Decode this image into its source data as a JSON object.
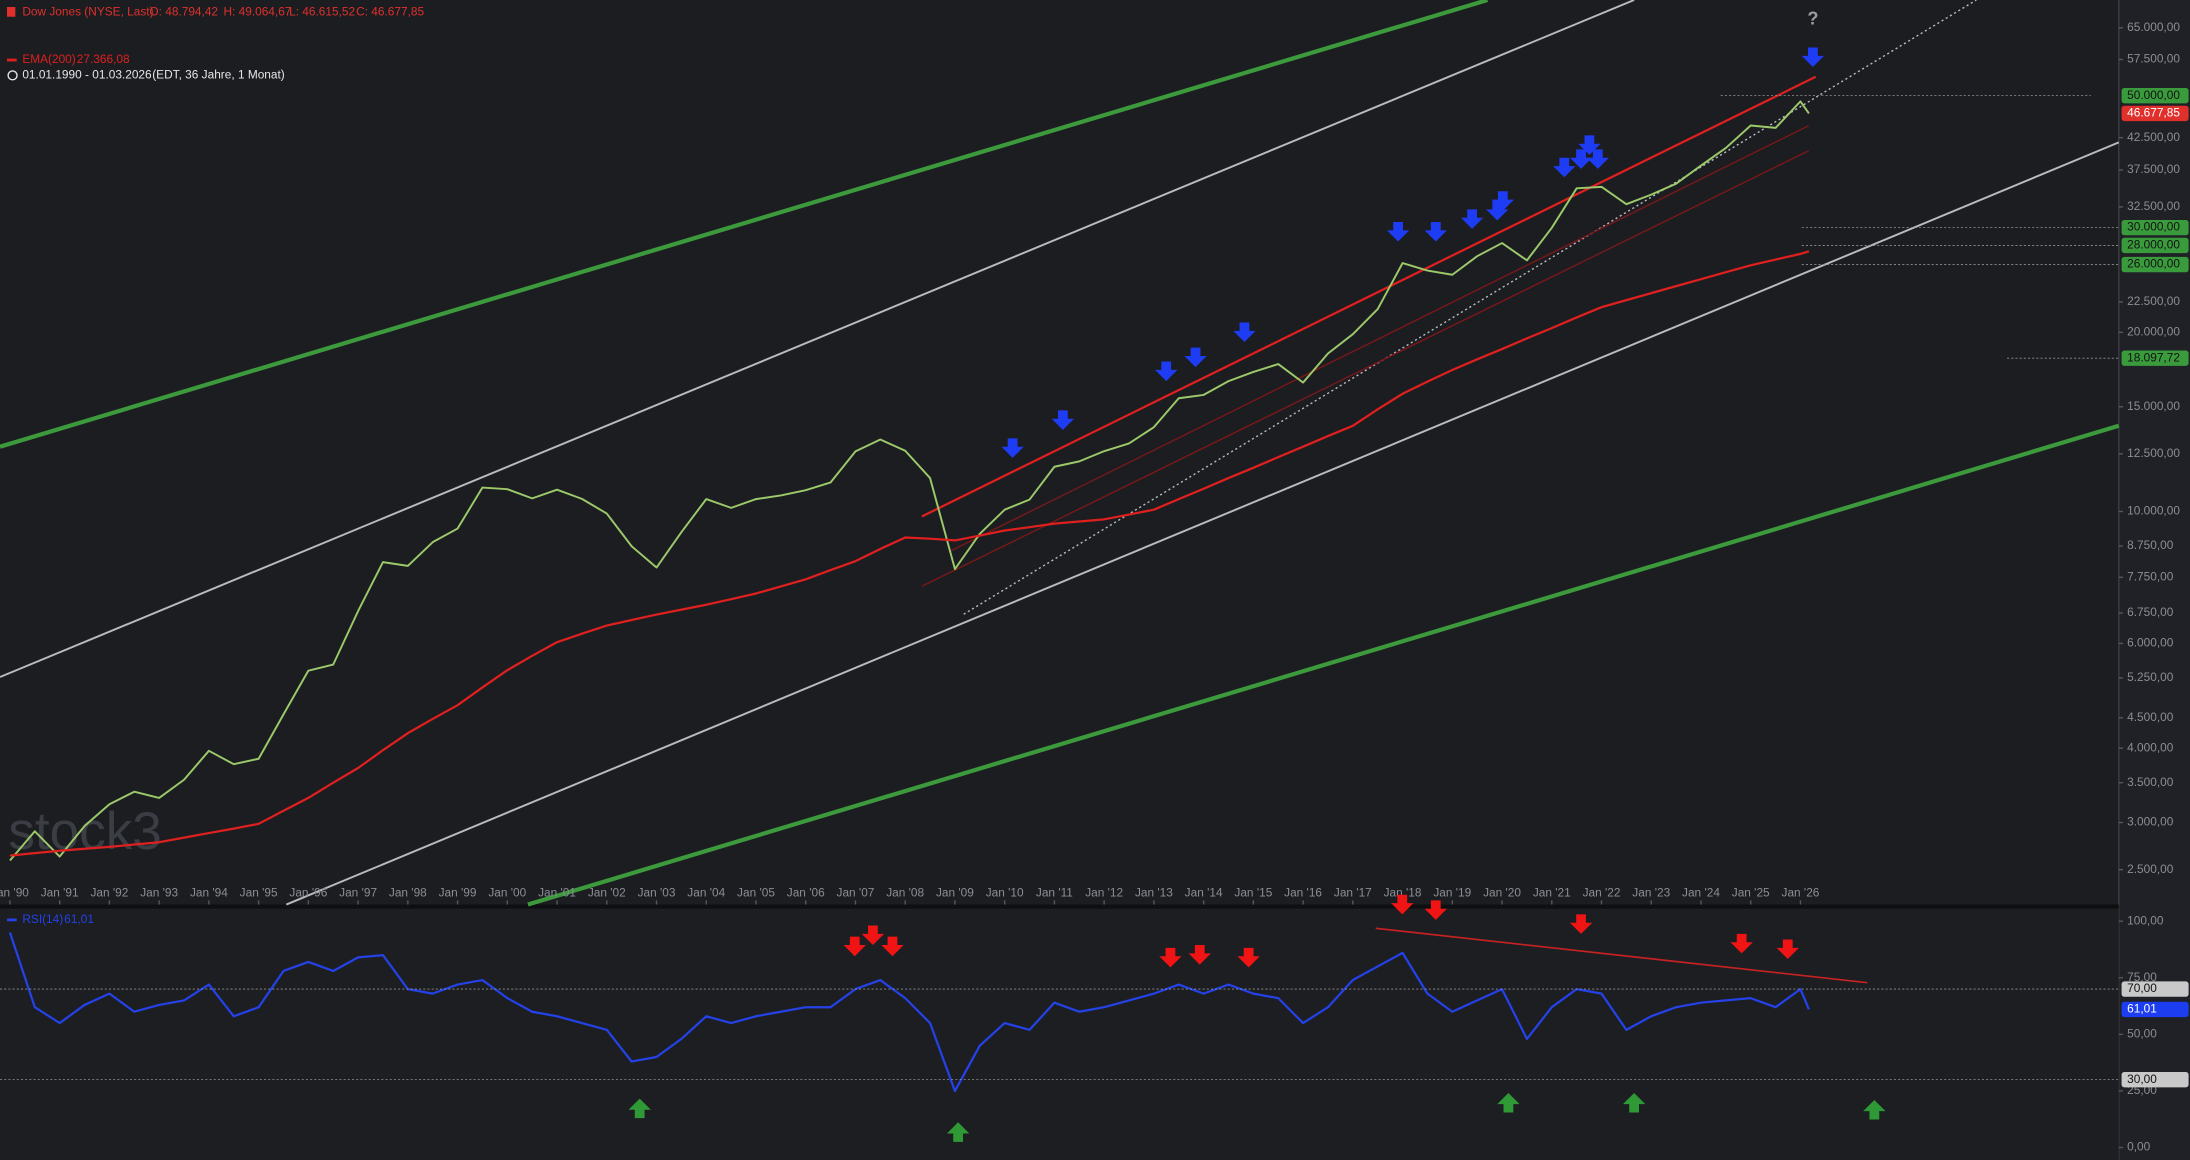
{
  "chart_data": [
    {
      "type": "line",
      "yscale": "log",
      "title": "Dow Jones (NYSE, Last)",
      "ohlc": [
        "O: 48.794,42",
        "H: 49.064,67",
        "L: 46.615,52",
        "C: 46.677,85"
      ],
      "date_range": "01.01.1990 - 01.03.2026",
      "date_range_note": "(EDT, 36 Jahre, 1 Monat)",
      "annotation": "?",
      "watermark": "stock3",
      "xlim": [
        1989.8,
        2032.4
      ],
      "xticks": [
        {
          "value": 1990,
          "label": "Jan '90"
        },
        {
          "value": 1991,
          "label": "Jan '91"
        },
        {
          "value": 1992,
          "label": "Jan '92"
        },
        {
          "value": 1993,
          "label": "Jan '93"
        },
        {
          "value": 1994,
          "label": "Jan '94"
        },
        {
          "value": 1995,
          "label": "Jan '95"
        },
        {
          "value": 1996,
          "label": "Jan '96"
        },
        {
          "value": 1997,
          "label": "Jan '97"
        },
        {
          "value": 1998,
          "label": "Jan '98"
        },
        {
          "value": 1999,
          "label": "Jan '99"
        },
        {
          "value": 2000,
          "label": "Jan '00"
        },
        {
          "value": 2001,
          "label": "Jan '01"
        },
        {
          "value": 2002,
          "label": "Jan '02"
        },
        {
          "value": 2003,
          "label": "Jan '03"
        },
        {
          "value": 2004,
          "label": "Jan '04"
        },
        {
          "value": 2005,
          "label": "Jan '05"
        },
        {
          "value": 2006,
          "label": "Jan '06"
        },
        {
          "value": 2007,
          "label": "Jan '07"
        },
        {
          "value": 2008,
          "label": "Jan '08"
        },
        {
          "value": 2009,
          "label": "Jan '09"
        },
        {
          "value": 2010,
          "label": "Jan '10"
        },
        {
          "value": 2011,
          "label": "Jan '11"
        },
        {
          "value": 2012,
          "label": "Jan '12"
        },
        {
          "value": 2013,
          "label": "Jan '13"
        },
        {
          "value": 2014,
          "label": "Jan '14"
        },
        {
          "value": 2015,
          "label": "Jan '15"
        },
        {
          "value": 2016,
          "label": "Jan '16"
        },
        {
          "value": 2017,
          "label": "Jan '17"
        },
        {
          "value": 2018,
          "label": "Jan '18"
        },
        {
          "value": 2019,
          "label": "Jan '19"
        },
        {
          "value": 2020,
          "label": "Jan '20"
        },
        {
          "value": 2021,
          "label": "Jan '21"
        },
        {
          "value": 2022,
          "label": "Jan '22"
        },
        {
          "value": 2023,
          "label": "Jan '23"
        },
        {
          "value": 2024,
          "label": "Jan '24"
        },
        {
          "value": 2025,
          "label": "Jan '25"
        },
        {
          "value": 2026,
          "label": "Jan '26"
        }
      ],
      "ylim": [
        2184,
        72400
      ],
      "yticks": [
        {
          "value": 65000,
          "label": "65.000,00"
        },
        {
          "value": 57500,
          "label": "57.500,00"
        },
        {
          "value": 42500,
          "label": "42.500,00"
        },
        {
          "value": 37500,
          "label": "37.500,00"
        },
        {
          "value": 32500,
          "label": "32.500,00"
        },
        {
          "value": 22500,
          "label": "22.500,00"
        },
        {
          "value": 20000,
          "label": "20.000,00"
        },
        {
          "value": 15000,
          "label": "15.000,00"
        },
        {
          "value": 12500,
          "label": "12.500,00"
        },
        {
          "value": 10000,
          "label": "10.000,00"
        },
        {
          "value": 8750,
          "label": "8.750,00"
        },
        {
          "value": 7750,
          "label": "7.750,00"
        },
        {
          "value": 6750,
          "label": "6.750,00"
        },
        {
          "value": 6000,
          "label": "6.000,00"
        },
        {
          "value": 5250,
          "label": "5.250,00"
        },
        {
          "value": 4500,
          "label": "4.500,00"
        },
        {
          "value": 4000,
          "label": "4.000,00"
        },
        {
          "value": 3500,
          "label": "3.500,00"
        },
        {
          "value": 3000,
          "label": "3.000,00"
        },
        {
          "value": 2500,
          "label": "2.500,00"
        }
      ],
      "levels": [
        {
          "value": 50000,
          "label": "50.000,00",
          "color": "#3a9b3c"
        },
        {
          "value": 30000,
          "label": "30.000,00",
          "color": "#3a9b3c"
        },
        {
          "value": 28000,
          "label": "28.000,00",
          "color": "#3a9b3c"
        },
        {
          "value": 26000,
          "label": "26.000,00",
          "color": "#3a9b3c"
        },
        {
          "value": 18097.72,
          "label": "18.097,72",
          "color": "#3a9b3c"
        }
      ],
      "last": {
        "value": 46677.85,
        "label": "46.677,85",
        "color": "#e0302c"
      },
      "x": [
        1990,
        1990.5,
        1991,
        1991.5,
        1992,
        1992.5,
        1993,
        1993.5,
        1994,
        1994.5,
        1995,
        1995.5,
        1996,
        1996.5,
        1997,
        1997.5,
        1998,
        1998.5,
        1999,
        1999.5,
        2000,
        2000.5,
        2001,
        2001.5,
        2002,
        2002.5,
        2003,
        2003.5,
        2004,
        2004.5,
        2005,
        2005.5,
        2006,
        2006.5,
        2007,
        2007.5,
        2008,
        2008.5,
        2009,
        2009.5,
        2010,
        2010.5,
        2011,
        2011.5,
        2012,
        2012.5,
        2013,
        2013.5,
        2014,
        2014.5,
        2015,
        2015.5,
        2016,
        2016.5,
        2017,
        2017.5,
        2018,
        2018.5,
        2019,
        2019.5,
        2020,
        2020.5,
        2021,
        2021.5,
        2022,
        2022.5,
        2023,
        2023.5,
        2024,
        2024.5,
        2025,
        2025.5,
        2026,
        2026.17
      ],
      "series": [
        {
          "name": "Dow Jones (NYSE, Last)",
          "color": "#9cc96a",
          "values": [
            2590,
            2900,
            2630,
            2960,
            3220,
            3380,
            3300,
            3540,
            3960,
            3760,
            3840,
            4560,
            5400,
            5530,
            6800,
            8220,
            8100,
            8880,
            9360,
            10970,
            10900,
            10520,
            10880,
            10500,
            9920,
            8740,
            8050,
            9230,
            10490,
            10140,
            10490,
            10640,
            10860,
            11190,
            12620,
            13210,
            12650,
            11380,
            8000,
            9170,
            10070,
            10470,
            11890,
            12140,
            12630,
            13010,
            13860,
            15500,
            15700,
            16560,
            17160,
            17690,
            16470,
            18430,
            19860,
            21890,
            26150,
            25410,
            25000,
            26860,
            28260,
            26430,
            29980,
            34930,
            35130,
            32850,
            34090,
            35560,
            38150,
            40840,
            44540,
            44130,
            48900,
            46677.85
          ]
        },
        {
          "name": "EMA(200)",
          "legend_value": "27.366,08",
          "color": "#e0201f",
          "values": [
            2640,
            2665,
            2690,
            2710,
            2730,
            2755,
            2780,
            2830,
            2880,
            2930,
            2985,
            3140,
            3300,
            3500,
            3705,
            3970,
            4240,
            4480,
            4725,
            5060,
            5410,
            5720,
            6030,
            6230,
            6430,
            6570,
            6710,
            6840,
            6970,
            7120,
            7280,
            7480,
            7690,
            7970,
            8250,
            8650,
            9040,
            9000,
            8940,
            9110,
            9290,
            9410,
            9540,
            9620,
            9700,
            9880,
            10070,
            10490,
            10920,
            11380,
            11840,
            12340,
            12850,
            13390,
            13930,
            14850,
            15770,
            16530,
            17290,
            18020,
            18750,
            19540,
            20330,
            21190,
            22050,
            22660,
            23280,
            23920,
            24570,
            25250,
            25930,
            26510,
            27100,
            27366.08
          ]
        }
      ]
    },
    {
      "type": "line",
      "xlim": [
        1989.8,
        2032.4
      ],
      "ylim": [
        -5.5,
        105.5
      ],
      "yticks": [
        {
          "value": 100,
          "label": "100,00"
        },
        {
          "value": 75,
          "label": "75,00"
        },
        {
          "value": 50,
          "label": "50,00"
        },
        {
          "value": 25,
          "label": "25,00"
        },
        {
          "value": 0,
          "label": "0,00"
        }
      ],
      "levels": [
        {
          "value": 70,
          "label": "70,00",
          "color": "#c9c9c9"
        },
        {
          "value": 30,
          "label": "30,00",
          "color": "#c9c9c9"
        }
      ],
      "last": {
        "value": 61.01,
        "label": "61,01",
        "color": "#1d3df0"
      },
      "x": [
        1990,
        1990.5,
        1991,
        1991.5,
        1992,
        1992.5,
        1993,
        1993.5,
        1994,
        1994.5,
        1995,
        1995.5,
        1996,
        1996.5,
        1997,
        1997.5,
        1998,
        1998.5,
        1999,
        1999.5,
        2000,
        2000.5,
        2001,
        2001.5,
        2002,
        2002.5,
        2003,
        2003.5,
        2004,
        2004.5,
        2005,
        2005.5,
        2006,
        2006.5,
        2007,
        2007.5,
        2008,
        2008.5,
        2009,
        2009.5,
        2010,
        2010.5,
        2011,
        2011.5,
        2012,
        2012.5,
        2013,
        2013.5,
        2014,
        2014.5,
        2015,
        2015.5,
        2016,
        2016.5,
        2017,
        2017.5,
        2018,
        2018.5,
        2019,
        2019.5,
        2020,
        2020.5,
        2021,
        2021.5,
        2022,
        2022.5,
        2023,
        2023.5,
        2024,
        2024.5,
        2025,
        2025.5,
        2026,
        2026.17
      ],
      "series": [
        {
          "name": "RSI(14)",
          "legend_value": "61,01",
          "color": "#2442e8",
          "values": [
            95,
            62,
            55,
            63,
            68,
            60,
            63,
            65,
            72,
            58,
            62,
            78,
            82,
            78,
            84,
            85,
            70,
            68,
            72,
            74,
            66,
            60,
            58,
            55,
            52,
            38,
            40,
            48,
            58,
            55,
            58,
            60,
            62,
            62,
            70,
            74,
            66,
            55,
            25,
            45,
            55,
            52,
            64,
            60,
            62,
            65,
            68,
            72,
            68,
            72,
            68,
            66,
            55,
            62,
            74,
            80,
            86,
            68,
            60,
            65,
            70,
            48,
            62,
            70,
            68,
            52,
            58,
            62,
            64,
            65,
            66,
            62,
            70,
            61.01
          ]
        }
      ]
    }
  ]
}
